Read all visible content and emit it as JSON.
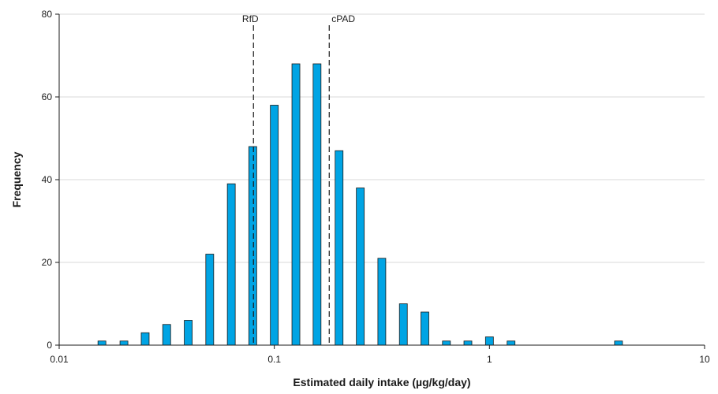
{
  "chart_data": {
    "type": "bar",
    "title": "",
    "xlabel": "Estimated daily intake (µg/kg/day)",
    "ylabel": "Frequency",
    "x_scale": "log",
    "xlim": [
      0.01,
      10
    ],
    "ylim": [
      0,
      80
    ],
    "x_ticks": [
      {
        "value": 0.01,
        "label": "0.01"
      },
      {
        "value": 0.1,
        "label": "0.1"
      },
      {
        "value": 1,
        "label": "1"
      },
      {
        "value": 10,
        "label": "10"
      }
    ],
    "y_ticks": [
      {
        "value": 0,
        "label": "0"
      },
      {
        "value": 20,
        "label": "20"
      },
      {
        "value": 40,
        "label": "40"
      },
      {
        "value": 60,
        "label": "60"
      },
      {
        "value": 80,
        "label": "80"
      }
    ],
    "grid": "horizontal",
    "bar_color": "#00a4e4",
    "x": [
      0.0158,
      0.02,
      0.0251,
      0.0316,
      0.0398,
      0.0501,
      0.0631,
      0.0794,
      0.1,
      0.126,
      0.158,
      0.2,
      0.251,
      0.316,
      0.398,
      0.501,
      0.631,
      0.794,
      1.0,
      1.26,
      3.98
    ],
    "values": [
      1,
      1,
      3,
      5,
      6,
      22,
      39,
      48,
      58,
      68,
      68,
      47,
      38,
      21,
      10,
      8,
      1,
      1,
      2,
      1,
      1
    ],
    "reference_lines": [
      {
        "label": "RfD",
        "x": 0.08
      },
      {
        "label": "cPAD",
        "x": 0.18
      }
    ]
  }
}
